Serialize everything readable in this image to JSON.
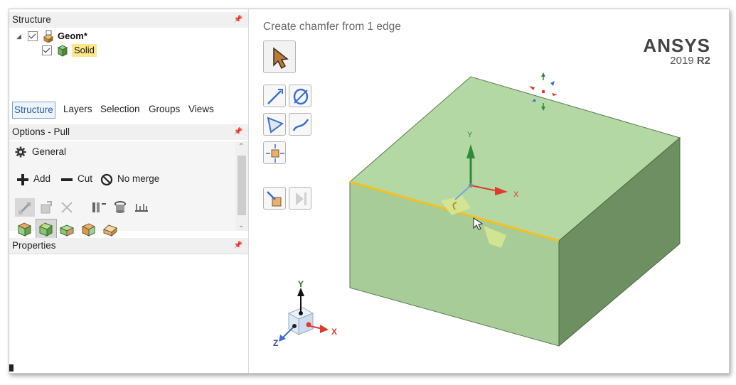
{
  "structure_panel": {
    "title": "Structure",
    "tree": [
      {
        "label": "Geom*",
        "checked": true,
        "expanded": true
      },
      {
        "label": "Solid",
        "checked": true,
        "highlighted": true
      }
    ]
  },
  "tabs": [
    "Structure",
    "Layers",
    "Selection",
    "Groups",
    "Views"
  ],
  "active_tab": "Structure",
  "options_panel": {
    "title": "Options - Pull",
    "section": "General",
    "add_label": "Add",
    "cut_label": "Cut",
    "no_merge_label": "No merge"
  },
  "properties_panel": {
    "title": "Properties"
  },
  "viewport": {
    "hint": "Create chamfer from 1 edge",
    "brand": "ANSYS",
    "version_year": "2019",
    "version_release": "R2",
    "axis_x": "X",
    "axis_y": "Y",
    "axis_z": "Z"
  },
  "colors": {
    "solid_top": "#b4d8a4",
    "solid_front": "#a8cc98",
    "solid_side": "#6e8f62",
    "edge_highlight": "#f4c020",
    "axis_x": "#e03a2a",
    "axis_y": "#2e8a3a",
    "axis_z": "#3a6fd0"
  }
}
